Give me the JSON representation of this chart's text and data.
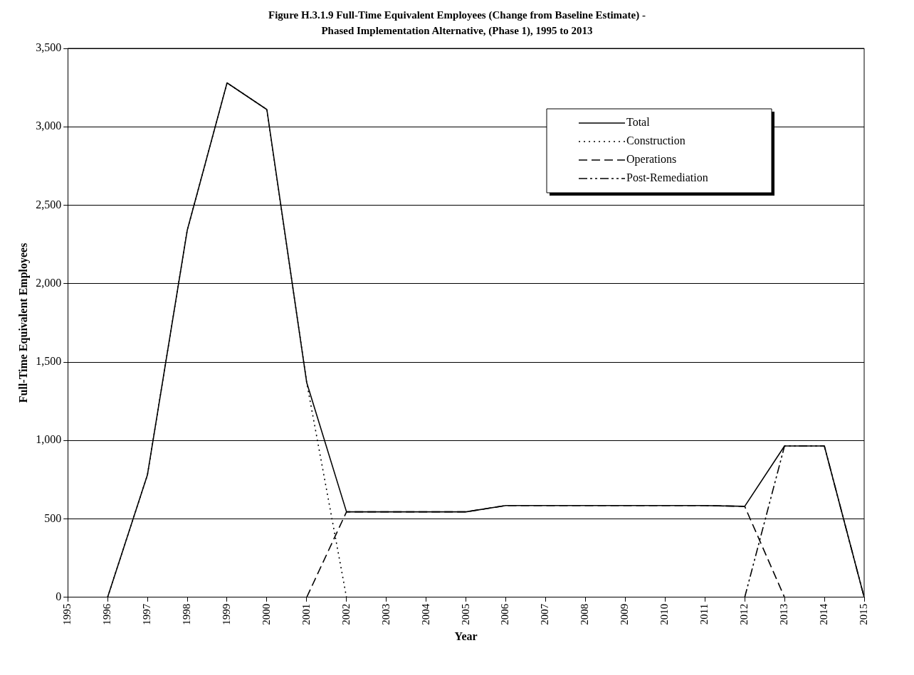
{
  "chart_data": {
    "type": "line",
    "title": "Figure H.3.1.9  Full-Time Equivalent Employees (Change from Baseline Estimate) -",
    "subtitle": "Phased Implementation Alternative, (Phase 1), 1995 to 2013",
    "xlabel": "Year",
    "ylabel": "Full-Time Equivalent Employees",
    "x": [
      1996,
      1997,
      1998,
      1999,
      2000,
      2001,
      2002,
      2003,
      2004,
      2005,
      2006,
      2007,
      2008,
      2009,
      2010,
      2011,
      2012,
      2013,
      2014,
      2015
    ],
    "xlim": [
      1995,
      2015
    ],
    "xticks": [
      1995,
      1996,
      1997,
      1998,
      1999,
      2000,
      2001,
      2002,
      2003,
      2004,
      2005,
      2006,
      2007,
      2008,
      2009,
      2010,
      2011,
      2012,
      2013,
      2014,
      2015
    ],
    "ylim": [
      0,
      3500
    ],
    "yticks": [
      {
        "value": 0,
        "label": "0"
      },
      {
        "value": 500,
        "label": "500"
      },
      {
        "value": 1000,
        "label": "1,000"
      },
      {
        "value": 1500,
        "label": "1,500"
      },
      {
        "value": 2000,
        "label": "2,000"
      },
      {
        "value": 2500,
        "label": "2,500"
      },
      {
        "value": 3000,
        "label": "3,000"
      },
      {
        "value": 3500,
        "label": "3,500"
      }
    ],
    "grid": "y",
    "legend": "top right",
    "marker": "none",
    "series": [
      {
        "name": "Total",
        "color": "#000000",
        "line_style": "solid",
        "values": [
          0,
          780,
          2340,
          3280,
          3110,
          1370,
          545,
          545,
          545,
          545,
          585,
          585,
          585,
          585,
          585,
          585,
          580,
          965,
          965,
          0
        ]
      },
      {
        "name": "Construction",
        "color": "#000000",
        "line_style": "dotted",
        "values": [
          0,
          780,
          2340,
          3280,
          3110,
          1370,
          0,
          null,
          null,
          null,
          null,
          null,
          null,
          null,
          null,
          null,
          null,
          null,
          null,
          null
        ]
      },
      {
        "name": "Operations",
        "color": "#000000",
        "line_style": "dashed",
        "values": [
          null,
          null,
          null,
          null,
          null,
          0,
          545,
          545,
          545,
          545,
          585,
          585,
          585,
          585,
          585,
          585,
          580,
          0,
          null,
          null
        ]
      },
      {
        "name": "Post-Remediation",
        "color": "#000000",
        "line_style": "dashdotdot",
        "values": [
          null,
          null,
          null,
          null,
          null,
          null,
          null,
          null,
          null,
          null,
          null,
          null,
          null,
          null,
          null,
          null,
          0,
          965,
          965,
          0
        ]
      }
    ]
  }
}
